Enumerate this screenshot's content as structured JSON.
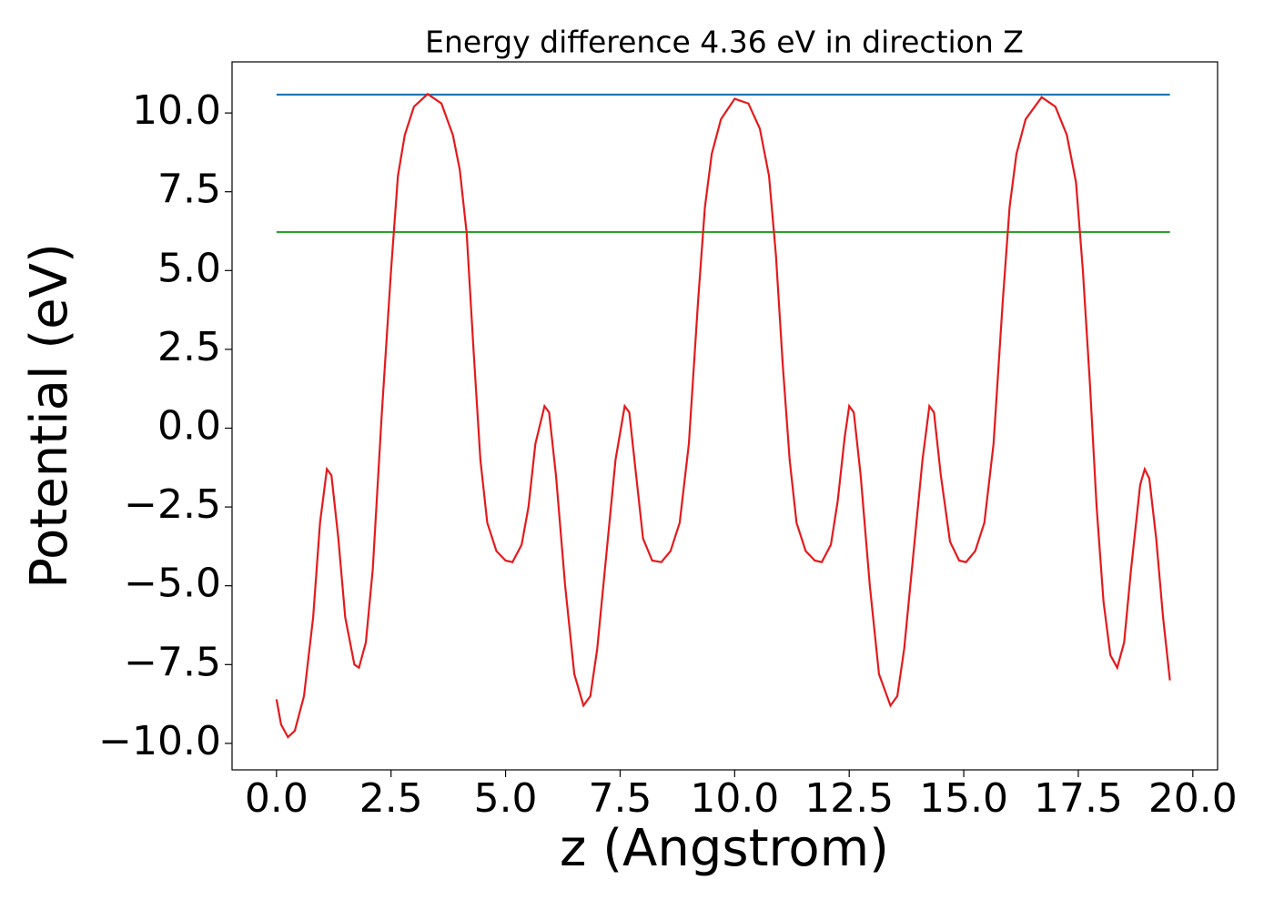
{
  "chart_data": {
    "type": "line",
    "title": "Energy difference 4.36 eV in direction Z",
    "xlabel": "z (Angstrom)",
    "ylabel": "Potential (eV)",
    "xlim": [
      -0.97,
      20.54
    ],
    "ylim": [
      -10.84,
      11.62
    ],
    "xticks": [
      {
        "value": 0,
        "label": "0.0"
      },
      {
        "value": 2.5,
        "label": "2.5"
      },
      {
        "value": 5,
        "label": "5.0"
      },
      {
        "value": 7.5,
        "label": "7.5"
      },
      {
        "value": 10,
        "label": "10.0"
      },
      {
        "value": 12.5,
        "label": "12.5"
      },
      {
        "value": 15,
        "label": "15.0"
      },
      {
        "value": 17.5,
        "label": "17.5"
      },
      {
        "value": 20,
        "label": "20.0"
      }
    ],
    "yticks": [
      {
        "value": -10,
        "label": "−10.0"
      },
      {
        "value": -7.5,
        "label": "−7.5"
      },
      {
        "value": -5,
        "label": "−5.0"
      },
      {
        "value": -2.5,
        "label": "−2.5"
      },
      {
        "value": 0,
        "label": "0.0"
      },
      {
        "value": 2.5,
        "label": "2.5"
      },
      {
        "value": 5,
        "label": "5.0"
      },
      {
        "value": 7.5,
        "label": "7.5"
      },
      {
        "value": 10,
        "label": "10.0"
      }
    ],
    "series": [
      {
        "color": "#1f77b4",
        "x": [
          0,
          19.5
        ],
        "values": [
          10.58,
          10.58
        ]
      },
      {
        "color": "#2ca02c",
        "x": [
          0,
          19.5
        ],
        "values": [
          6.22,
          6.22
        ]
      },
      {
        "color": "#e41a1c",
        "x": [
          0,
          0.1,
          0.25,
          0.4,
          0.6,
          0.8,
          0.95,
          1.1,
          1.2,
          1.35,
          1.5,
          1.7,
          1.8,
          1.95,
          2.1,
          2.3,
          2.5,
          2.65,
          2.8,
          3.0,
          3.3,
          3.6,
          3.85,
          4.0,
          4.15,
          4.3,
          4.45,
          4.6,
          4.8,
          5.0,
          5.15,
          5.35,
          5.5,
          5.65,
          5.85,
          5.95,
          6.1,
          6.3,
          6.5,
          6.7,
          6.85,
          7.0,
          7.2,
          7.4,
          7.6,
          7.7,
          7.85,
          8.0,
          8.2,
          8.4,
          8.6,
          8.8,
          9.0,
          9.2,
          9.35,
          9.5,
          9.7,
          10.0,
          10.3,
          10.55,
          10.75,
          10.9,
          11.05,
          11.2,
          11.35,
          11.55,
          11.75,
          11.9,
          12.1,
          12.25,
          12.4,
          12.5,
          12.6,
          12.75,
          12.95,
          13.15,
          13.4,
          13.55,
          13.7,
          13.9,
          14.1,
          14.25,
          14.35,
          14.5,
          14.7,
          14.9,
          15.05,
          15.25,
          15.45,
          15.65,
          15.85,
          16.0,
          16.15,
          16.35,
          16.7,
          17.0,
          17.25,
          17.45,
          17.6,
          17.75,
          17.9,
          18.05,
          18.2,
          18.35,
          18.5,
          18.65,
          18.85,
          18.95,
          19.05,
          19.2,
          19.35,
          19.5
        ],
        "values": [
          -8.6,
          -9.4,
          -9.8,
          -9.6,
          -8.5,
          -6.0,
          -3.0,
          -1.3,
          -1.5,
          -3.5,
          -6.0,
          -7.5,
          -7.6,
          -6.8,
          -4.5,
          0.5,
          5.0,
          8.0,
          9.3,
          10.2,
          10.6,
          10.3,
          9.3,
          8.2,
          6.2,
          2.5,
          -1.0,
          -3.0,
          -3.9,
          -4.2,
          -4.25,
          -3.7,
          -2.5,
          -0.5,
          0.7,
          0.5,
          -1.5,
          -5.0,
          -7.8,
          -8.8,
          -8.5,
          -7.0,
          -4.0,
          -1.0,
          0.7,
          0.5,
          -1.5,
          -3.5,
          -4.2,
          -4.25,
          -3.9,
          -3.0,
          -0.5,
          4.0,
          7.0,
          8.7,
          9.8,
          10.45,
          10.3,
          9.5,
          8.0,
          5.5,
          2.0,
          -1.0,
          -3.0,
          -3.9,
          -4.2,
          -4.25,
          -3.7,
          -2.3,
          -0.3,
          0.7,
          0.5,
          -1.5,
          -5.0,
          -7.8,
          -8.8,
          -8.5,
          -7.0,
          -4.0,
          -1.0,
          0.7,
          0.5,
          -1.5,
          -3.6,
          -4.2,
          -4.25,
          -3.9,
          -3.0,
          -0.5,
          4.0,
          7.0,
          8.7,
          9.8,
          10.5,
          10.2,
          9.3,
          7.8,
          5.0,
          1.5,
          -2.5,
          -5.5,
          -7.2,
          -7.6,
          -6.8,
          -4.5,
          -1.8,
          -1.3,
          -1.6,
          -3.5,
          -6.0,
          -8.0
        ]
      }
    ]
  }
}
